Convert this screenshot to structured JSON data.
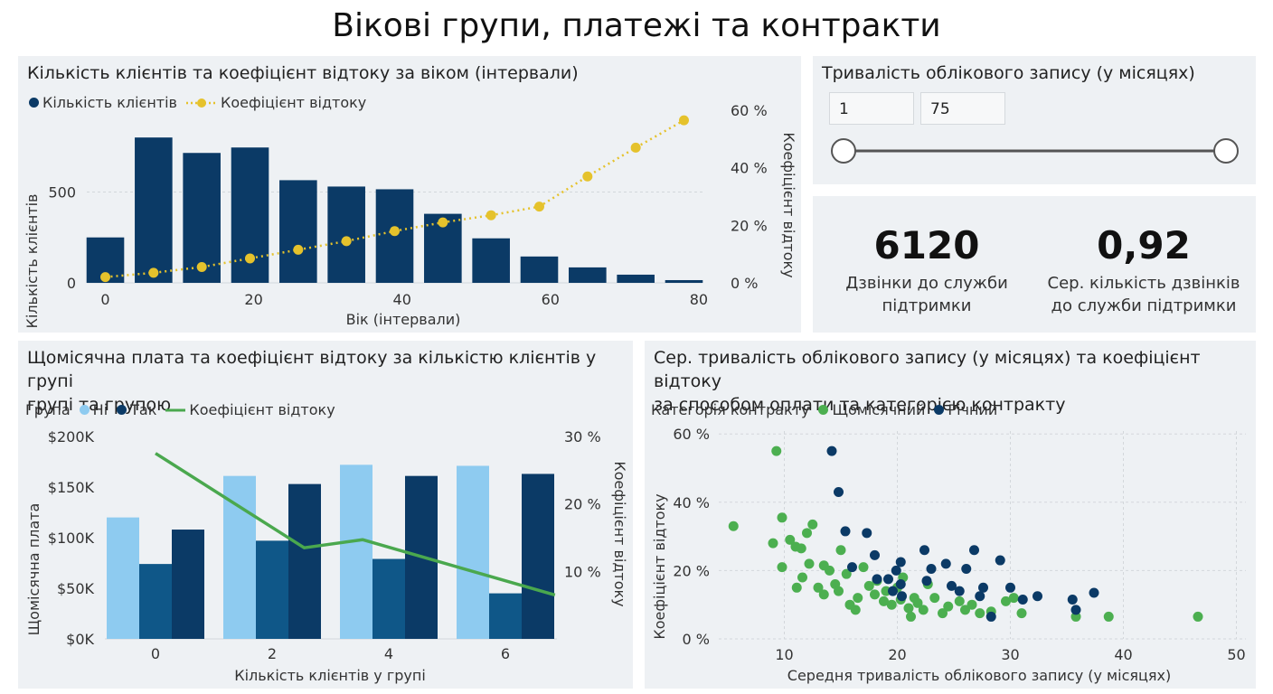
{
  "page_title": "Вікові групи, платежі та контракти",
  "colors": {
    "navy": "#0b3a66",
    "yellow": "#e5c22c",
    "light_blue": "#8ecbf0",
    "mid_blue": "#0f5788",
    "green": "#4aa84e",
    "scatter_green": "#4caf50"
  },
  "age_chart": {
    "title": "Кількість клієнтів та коефіцієнт відтоку за віком (інтервали)",
    "legend": {
      "bar_label": "Кількість клієнтів",
      "line_label": "Коефіцієнт відтоку"
    },
    "ylabel_left": "Кількість клієнтів",
    "ylabel_right": "Коефіцієнт відтоку",
    "xlabel": "Вік (інтервали)",
    "x_ticks": [
      "0",
      "20",
      "40",
      "60",
      "80"
    ],
    "y_ticks_left": [
      "0",
      "500"
    ],
    "y_ticks_right": [
      "0 %",
      "20 %",
      "40 %",
      "60 %"
    ]
  },
  "slicer": {
    "title": "Тривалість облікового запису (у місяцях)",
    "min_value": "1",
    "max_value": "75",
    "range": [
      1,
      75
    ],
    "selected": [
      1,
      75
    ]
  },
  "kpis": [
    {
      "value": "6120",
      "label_line1": "Дзвінки до служби",
      "label_line2": "підтримки"
    },
    {
      "value": "0,92",
      "label_line1": "Сер. кількість дзвінків",
      "label_line2": "до служби підтримки"
    }
  ],
  "payment_chart": {
    "title_line1": "Щомісячна плата та коефіцієнт відтоку за кількістю клієнтів у групі",
    "title_line2": "групі та групою",
    "legend": {
      "group_label": "Група",
      "no_label": "Ні",
      "yes_label": "Так",
      "line_label": "Коефіцієнт відтоку"
    },
    "ylabel_left": "Щомісячна плата",
    "ylabel_right": "Коефіцієнт відтоку",
    "xlabel": "Кількість клієнтів у групі",
    "x_ticks": [
      "0",
      "2",
      "4",
      "6"
    ],
    "y_ticks_left": [
      "$0K",
      "$50K",
      "$100K",
      "$150K",
      "$200K"
    ],
    "y_ticks_right": [
      "10 %",
      "20 %",
      "30 %"
    ]
  },
  "scatter_chart": {
    "title_line1": "Сер. тривалість облікового запису (у місяцях) та коефіцієнт відтоку",
    "title_line2": "за способом оплати та категорією контракту",
    "legend": {
      "category_label": "Категорія контракту",
      "monthly_label": "Щомісячний",
      "yearly_label": "Річний"
    },
    "ylabel": "Коефіцієнт відтоку",
    "xlabel": "Середня тривалість облікового запису (у місяцях)",
    "x_ticks": [
      "10",
      "20",
      "30",
      "40",
      "50"
    ],
    "y_ticks": [
      "0 %",
      "20 %",
      "40 %",
      "60 %"
    ]
  },
  "chart_data": [
    {
      "type": "bar",
      "x": [
        0,
        6.5,
        13,
        19.5,
        26,
        32.5,
        39,
        45.5,
        52,
        58.5,
        65,
        71.5,
        78
      ],
      "series": [
        {
          "name": "Кількість клієнтів",
          "axis": "left",
          "values": [
            250,
            800,
            715,
            745,
            565,
            530,
            515,
            380,
            245,
            145,
            85,
            45,
            15
          ]
        },
        {
          "name": "Коефіцієнт відтоку",
          "axis": "right",
          "type": "line",
          "values": [
            2,
            3.5,
            5.5,
            8.5,
            11.5,
            14.5,
            18,
            21,
            23.5,
            26.5,
            37,
            47,
            56.5
          ]
        }
      ],
      "xlim": [
        -2.5,
        80.5
      ],
      "ylim_left": [
        0,
        950
      ],
      "ylim_right": [
        0,
        60
      ]
    },
    {
      "type": "bar",
      "x": [
        0,
        2,
        4,
        6
      ],
      "series": [
        {
          "name": "Ні",
          "values": [
            120,
            161,
            172,
            171
          ]
        },
        {
          "name": "Так",
          "values": [
            74,
            97,
            79,
            45
          ]
        },
        {
          "name": "Так",
          "values": [
            108,
            153,
            161,
            163
          ]
        },
        {
          "name": "Коефіцієнт відтоку",
          "type": "line",
          "x": [
            0,
            2.55,
            3.55,
            6.85
          ],
          "values": [
            27.5,
            13.5,
            14.7,
            6.5
          ]
        }
      ],
      "ylim_left": [
        0,
        200
      ],
      "ylim_right": [
        0,
        30
      ]
    },
    {
      "type": "scatter",
      "xlim": [
        0,
        50
      ],
      "ylim": [
        0,
        60
      ],
      "series": [
        {
          "name": "Щомісячний",
          "points": [
            [
              5.5,
              33
            ],
            [
              9.3,
              55
            ],
            [
              9.8,
              35.5
            ],
            [
              9,
              28
            ],
            [
              9.8,
              21
            ],
            [
              10.5,
              29
            ],
            [
              11,
              27
            ],
            [
              11.5,
              26.5
            ],
            [
              12.5,
              33.5
            ],
            [
              12,
              31
            ],
            [
              11.1,
              15
            ],
            [
              11.6,
              18
            ],
            [
              12.2,
              22
            ],
            [
              13,
              15
            ],
            [
              13.5,
              21.5
            ],
            [
              13.5,
              13
            ],
            [
              14,
              20
            ],
            [
              14.5,
              16
            ],
            [
              14.8,
              14
            ],
            [
              15,
              26
            ],
            [
              15.5,
              19
            ],
            [
              15.8,
              10
            ],
            [
              16.3,
              8.5
            ],
            [
              16.5,
              12
            ],
            [
              17,
              21
            ],
            [
              17.5,
              15.5
            ],
            [
              18,
              13
            ],
            [
              18.2,
              17
            ],
            [
              18.8,
              11
            ],
            [
              19,
              14
            ],
            [
              19.5,
              10
            ],
            [
              20,
              15
            ],
            [
              20.3,
              11.5
            ],
            [
              20.5,
              18
            ],
            [
              21,
              9
            ],
            [
              21.2,
              6.5
            ],
            [
              21.5,
              12
            ],
            [
              21.8,
              10.5
            ],
            [
              22.3,
              8.5
            ],
            [
              22.7,
              16
            ],
            [
              23.3,
              12
            ],
            [
              24,
              7.5
            ],
            [
              24.5,
              9.5
            ],
            [
              25.5,
              11
            ],
            [
              26,
              8.5
            ],
            [
              26.6,
              10
            ],
            [
              27.3,
              7.5
            ],
            [
              28.3,
              8
            ],
            [
              29.6,
              11
            ],
            [
              30.3,
              12
            ],
            [
              31,
              7.5
            ],
            [
              35.8,
              6.5
            ],
            [
              38.7,
              6.5
            ],
            [
              46.6,
              6.5
            ]
          ]
        },
        {
          "name": "Річний",
          "points": [
            [
              14.2,
              55
            ],
            [
              14.8,
              43
            ],
            [
              15.4,
              31.5
            ],
            [
              16,
              21
            ],
            [
              17.3,
              31
            ],
            [
              18,
              24.5
            ],
            [
              18.2,
              17.5
            ],
            [
              19.2,
              17.5
            ],
            [
              19.6,
              14
            ],
            [
              19.9,
              20
            ],
            [
              20.3,
              16
            ],
            [
              20.4,
              12.5
            ],
            [
              20.3,
              22.5
            ],
            [
              22.4,
              26
            ],
            [
              22.6,
              17
            ],
            [
              23,
              20.5
            ],
            [
              24.3,
              22
            ],
            [
              24.8,
              15.5
            ],
            [
              25.5,
              14
            ],
            [
              26.1,
              20.5
            ],
            [
              26.8,
              26
            ],
            [
              27.3,
              12.5
            ],
            [
              27.6,
              15
            ],
            [
              28.3,
              6.5
            ],
            [
              29.1,
              23
            ],
            [
              30,
              15
            ],
            [
              31.1,
              11.5
            ],
            [
              32.4,
              12.5
            ],
            [
              35.5,
              11.5
            ],
            [
              35.8,
              8.5
            ],
            [
              37.4,
              13.5
            ]
          ]
        }
      ]
    }
  ]
}
